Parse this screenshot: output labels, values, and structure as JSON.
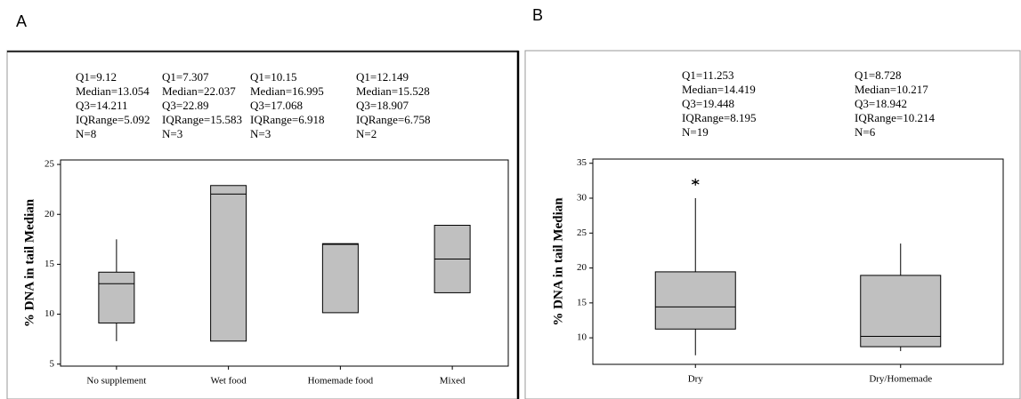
{
  "chart_data": [
    {
      "type": "box",
      "title": "A",
      "y_label": "% DNA in tail Median",
      "categories": [
        "No supplement",
        "Wet food",
        "Homemade food",
        "Mixed"
      ],
      "whisker_low": [
        7.3,
        null,
        null,
        null
      ],
      "q1": [
        9.12,
        7.307,
        10.15,
        12.149
      ],
      "median": [
        13.054,
        22.037,
        16.995,
        15.528
      ],
      "q3": [
        14.211,
        22.89,
        17.068,
        18.907
      ],
      "whisker_high": [
        17.5,
        null,
        null,
        null
      ],
      "outliers": [
        [],
        [],
        [],
        []
      ],
      "stats_labels": [
        [
          "Q1=9.12",
          "Median=13.054",
          "Q3=14.211",
          "IQRange=5.092",
          "N=8"
        ],
        [
          "Q1=7.307",
          "Median=22.037",
          "Q3=22.89",
          "IQRange=15.583",
          "N=3"
        ],
        [
          "Q1=10.15",
          "Median=16.995",
          "Q3=17.068",
          "IQRange=6.918",
          "N=3"
        ],
        [
          "Q1=12.149",
          "Median=15.528",
          "Q3=18.907",
          "IQRange=6.758",
          "N=2"
        ]
      ],
      "color": "#c0c0c0",
      "ylim": [
        4.8,
        25.45
      ],
      "yticks": [
        5,
        10,
        15,
        20,
        25
      ]
    },
    {
      "type": "box",
      "title": "B",
      "y_label": "% DNA in tail Median",
      "categories": [
        "Dry",
        "Dry/Homemade"
      ],
      "whisker_low": [
        7.5,
        8.1
      ],
      "q1": [
        11.253,
        8.728
      ],
      "median": [
        14.419,
        10.217
      ],
      "q3": [
        19.448,
        18.942
      ],
      "whisker_high": [
        30,
        23.5
      ],
      "outliers": [
        [
          32.3
        ],
        []
      ],
      "stats_labels": [
        [
          "Q1=11.253",
          "Median=14.419",
          "Q3=19.448",
          "IQRange=8.195",
          "N=19"
        ],
        [
          "Q1=8.728",
          "Median=10.217",
          "Q3=18.942",
          "IQRange=10.214",
          "N=6"
        ]
      ],
      "color": "#c0c0c0",
      "ylim": [
        6.2,
        35.6
      ],
      "yticks": [
        10,
        15,
        20,
        25,
        30,
        35
      ]
    }
  ]
}
